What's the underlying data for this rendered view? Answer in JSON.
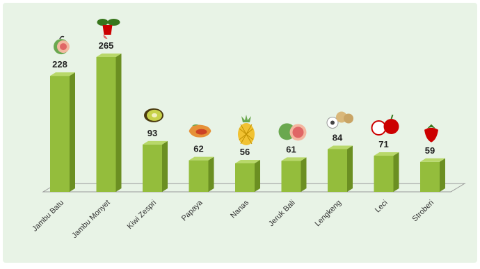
{
  "colors": {
    "background": "#e8f3e6",
    "bar_front": "#94bd3c",
    "bar_side": "#6b8f22",
    "bar_top": "#b8d86a",
    "floor_line": "#999999"
  },
  "chart_data": {
    "type": "bar",
    "title": "",
    "xlabel": "",
    "ylabel": "",
    "grid": false,
    "legend": "none",
    "ylim": [
      0,
      300
    ],
    "categories": [
      "Jambu Batu",
      "Jambu Monyet",
      "Kiwi Zespri",
      "Papaya",
      "Nanas",
      "Jeruk Bali",
      "Lengkeng",
      "Leci",
      "Stroberi"
    ],
    "values": [
      228,
      265,
      93,
      62,
      56,
      61,
      84,
      71,
      59
    ],
    "value_labels": [
      "228",
      "265",
      "93",
      "62",
      "56",
      "61",
      "84",
      "71",
      "59"
    ],
    "icons": [
      "guava-icon",
      "cashew-fruit-icon",
      "kiwi-icon",
      "papaya-icon",
      "pineapple-icon",
      "pomelo-icon",
      "longan-icon",
      "lychee-icon",
      "strawberry-icon"
    ]
  }
}
